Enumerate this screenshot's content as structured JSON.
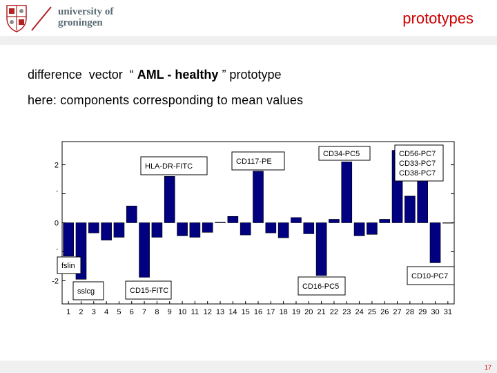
{
  "header": {
    "logo_line1": "university of",
    "logo_line2": "groningen",
    "section_title": "prototypes"
  },
  "slide": {
    "title_pre": "difference  vector  “ ",
    "title_bold": "AML - healthy",
    "title_post": " ” prototype",
    "subtitle": "here: components corresponding to mean values"
  },
  "footer": {
    "page_number": "17"
  },
  "colors": {
    "bar_fill": "#000080",
    "accent": "#cc0000"
  },
  "chart_data": {
    "type": "bar",
    "categories": [
      "1",
      "2",
      "3",
      "4",
      "5",
      "6",
      "7",
      "8",
      "9",
      "10",
      "11",
      "12",
      "13",
      "14",
      "15",
      "16",
      "17",
      "18",
      "19",
      "20",
      "21",
      "22",
      "23",
      "24",
      "25",
      "26",
      "27",
      "28",
      "29",
      "30",
      "31"
    ],
    "values": [
      -1.15,
      -1.95,
      -0.35,
      -0.6,
      -0.5,
      0.58,
      -1.88,
      -0.5,
      1.6,
      -0.45,
      -0.5,
      -0.33,
      0.02,
      0.22,
      -0.42,
      1.78,
      -0.35,
      -0.52,
      0.18,
      -0.38,
      -1.82,
      0.12,
      2.1,
      -0.45,
      -0.4,
      0.12,
      2.5,
      0.92,
      1.45,
      -1.38,
      0
    ],
    "ylim": [
      -2.8,
      2.8
    ],
    "ytick_labels": [
      "2",
      "´",
      "0",
      "´",
      "-2"
    ],
    "annotations": [
      {
        "text": "HLA-DR-FITC",
        "bar": 9
      },
      {
        "text": "CD117-PE",
        "bar": 16
      },
      {
        "text": "CD34-PC5",
        "bar": 23
      },
      {
        "text": "CD56-PC7\nCD33-PC7\nCD38-PC7",
        "bar": 28
      },
      {
        "text": "fslin",
        "bar": 1
      },
      {
        "text": "sslcg",
        "bar": 2
      },
      {
        "text": "CD15-FITC",
        "bar": 7
      },
      {
        "text": "CD16-PC5",
        "bar": 21
      },
      {
        "text": "CD10-PC7",
        "bar": 30
      }
    ]
  }
}
